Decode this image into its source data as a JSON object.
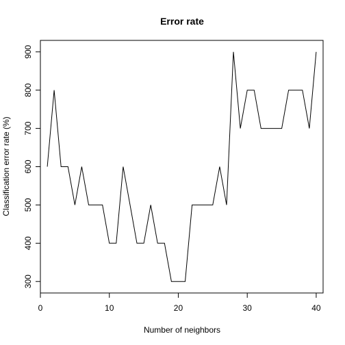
{
  "chart_data": {
    "type": "line",
    "title": "Error rate",
    "xlabel": "Number of neighbors",
    "ylabel": "Classification error rate (%)",
    "xlim": [
      0,
      41
    ],
    "ylim": [
      270,
      930
    ],
    "x_ticks": [
      0,
      10,
      20,
      30,
      40
    ],
    "y_ticks": [
      300,
      400,
      500,
      600,
      700,
      800,
      900
    ],
    "grid": false,
    "legend": "none",
    "line_color": "#000000",
    "series": [
      {
        "x": [
          1,
          2,
          3,
          4,
          5,
          6,
          7,
          8,
          9,
          10,
          11,
          12,
          13,
          14,
          15,
          16,
          17,
          18,
          19,
          20,
          21,
          22,
          23,
          24,
          25,
          26,
          27,
          28,
          29,
          30,
          31,
          32,
          33,
          34,
          35,
          36,
          37,
          38,
          39,
          40
        ],
        "values": [
          600,
          800,
          600,
          600,
          500,
          600,
          500,
          500,
          500,
          400,
          400,
          600,
          500,
          400,
          400,
          500,
          400,
          400,
          300,
          300,
          300,
          500,
          500,
          500,
          500,
          600,
          500,
          900,
          700,
          800,
          800,
          700,
          700,
          700,
          700,
          800,
          800,
          800,
          700,
          900
        ]
      }
    ]
  }
}
